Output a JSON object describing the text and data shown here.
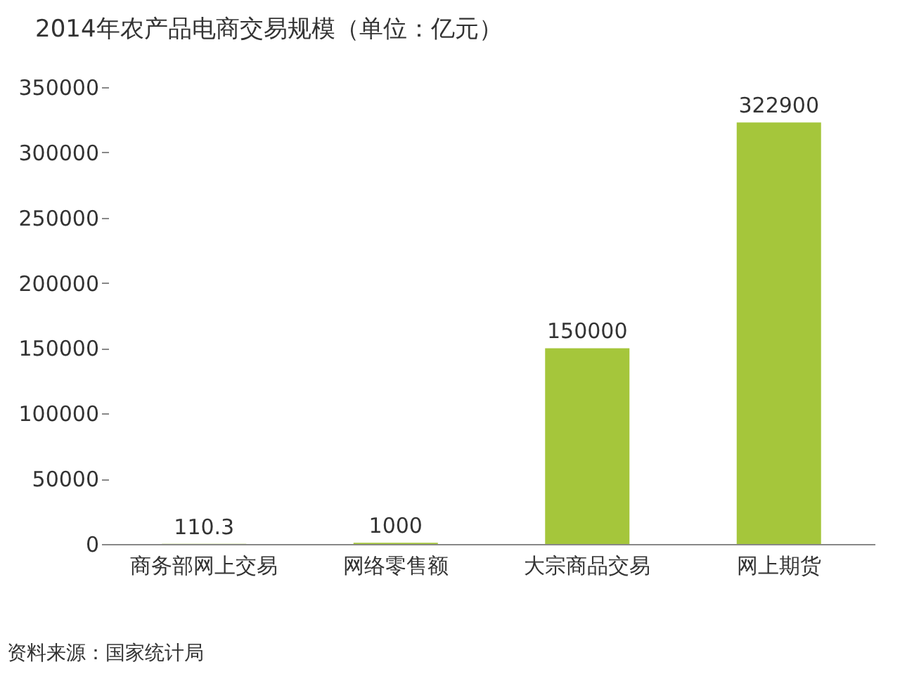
{
  "chart_data": {
    "type": "bar",
    "title": "2014年农产品电商交易规模（单位：亿元）",
    "categories": [
      "商务部网上交易",
      "网络零售额",
      "大宗商品交易",
      "网上期货"
    ],
    "values": [
      110.3,
      1000,
      150000,
      322900
    ],
    "color": "#a5c63b",
    "ylim": [
      0,
      350000
    ],
    "yticks": [
      0,
      50000,
      100000,
      150000,
      200000,
      250000,
      300000,
      350000
    ],
    "grid": false,
    "data_labels": true,
    "annotations": [
      "资料来源：国家统计局"
    ]
  }
}
